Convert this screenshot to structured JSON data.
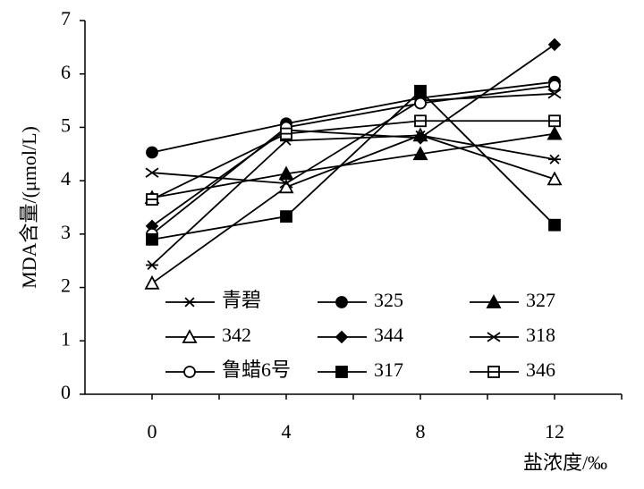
{
  "chart_data": {
    "type": "line",
    "x": [
      0,
      4,
      8,
      12
    ],
    "xlim": [
      -2,
      14
    ],
    "xticks": [
      0,
      4,
      8,
      12
    ],
    "ylim": [
      0,
      7
    ],
    "yticks": [
      0,
      1,
      2,
      3,
      4,
      5,
      6,
      7
    ],
    "x_label": "盐浓度/‰",
    "y_label": "MDA含量/(μmol/L)",
    "series": [
      {
        "name": "青碧",
        "marker": "asterisk",
        "color": "#000000",
        "values": [
          2.42,
          4.75,
          4.85,
          4.4
        ]
      },
      {
        "name": "325",
        "marker": "circle-filled",
        "color": "#000000",
        "values": [
          4.53,
          5.07,
          5.55,
          5.85
        ]
      },
      {
        "name": "327",
        "marker": "triangle-filled",
        "color": "#000000",
        "values": [
          3.68,
          4.13,
          4.5,
          4.88
        ]
      },
      {
        "name": "342",
        "marker": "triangle-open",
        "color": "#000000",
        "values": [
          2.08,
          3.88,
          4.85,
          4.03
        ]
      },
      {
        "name": "344",
        "marker": "diamond-filled",
        "color": "#000000",
        "values": [
          3.15,
          4.95,
          4.8,
          6.55
        ]
      },
      {
        "name": "318",
        "marker": "x",
        "color": "#000000",
        "values": [
          4.15,
          3.95,
          5.5,
          5.63
        ]
      },
      {
        "name": "鲁蜡6号",
        "marker": "circle-open",
        "color": "#000000",
        "values": [
          3.0,
          5.0,
          5.45,
          5.78
        ]
      },
      {
        "name": "317",
        "marker": "square-filled",
        "color": "#000000",
        "values": [
          2.9,
          3.33,
          5.68,
          3.17
        ]
      },
      {
        "name": "346",
        "marker": "square-open",
        "color": "#000000",
        "values": [
          3.65,
          4.88,
          5.12,
          5.12
        ]
      }
    ]
  }
}
